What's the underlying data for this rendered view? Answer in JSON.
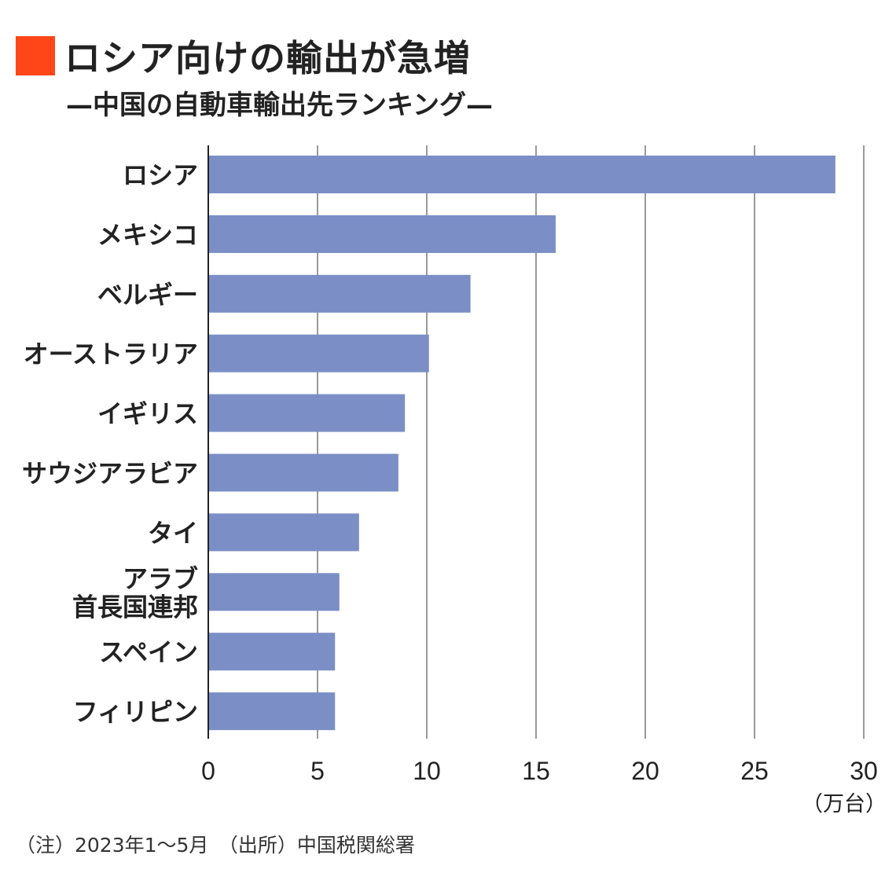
{
  "colors": {
    "accent": "#ff4618",
    "bar": "#7b8fc6",
    "grid": "#9a9a9a",
    "axis": "#222222"
  },
  "chart_data": {
    "type": "bar",
    "orientation": "horizontal",
    "title": "ロシア向けの輸出が急増",
    "subtitle": "—中国の自動車輸出先ランキング—",
    "categories": [
      "ロシア",
      "メキシコ",
      "ベルギー",
      "オーストラリア",
      "イギリス",
      "サウジアラビア",
      "タイ",
      "アラブ\n首長国連邦",
      "スペイン",
      "フィリピン"
    ],
    "values": [
      28.7,
      15.9,
      12.0,
      10.1,
      9.0,
      8.7,
      6.9,
      6.0,
      5.8,
      5.8
    ],
    "xlim": [
      0,
      30
    ],
    "xticks": [
      "0",
      "5",
      "10",
      "15",
      "20",
      "25",
      "30"
    ],
    "xlabel": "（万台）",
    "grid": true
  },
  "footer": {
    "note": "（注）2023年1～5月　（出所）中国税関総署"
  }
}
